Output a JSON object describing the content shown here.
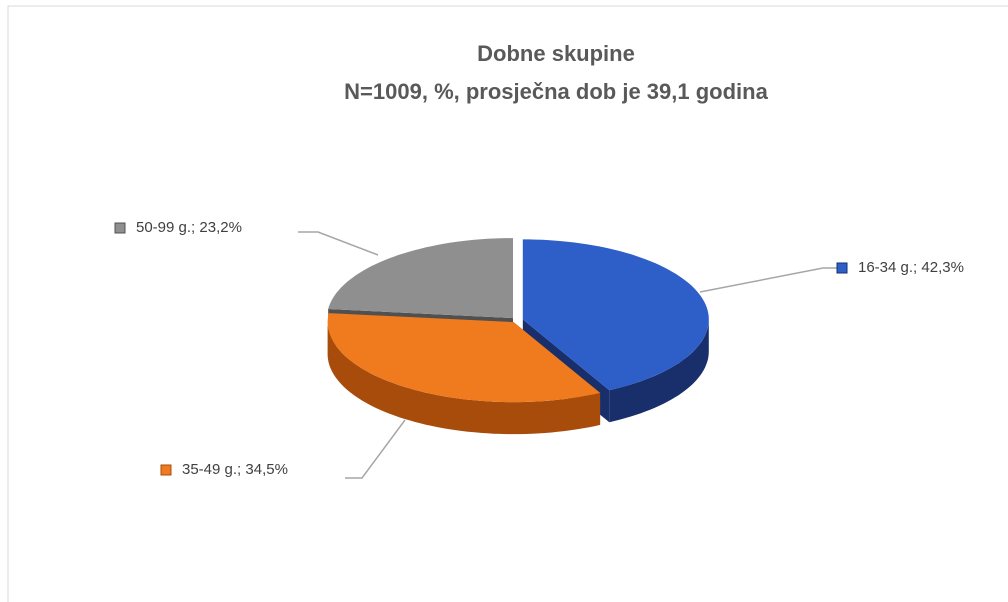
{
  "chart_data": {
    "type": "pie3d",
    "title": "Dobne skupine",
    "subtitle": "N=1009, %, prosječna dob je 39,1 godina",
    "categories": [
      "16-34 g.",
      "35-49 g.",
      "50-99 g."
    ],
    "values": [
      42.3,
      34.5,
      23.2
    ],
    "value_labels": [
      "42,3%",
      "34,5%",
      "23,2%"
    ],
    "label_separator": "; ",
    "colors": [
      "#2e5fc9",
      "#f07a1e",
      "#8f8f8f"
    ],
    "side_colors": [
      "#182f6b",
      "#a84c0b",
      "#505050"
    ]
  }
}
